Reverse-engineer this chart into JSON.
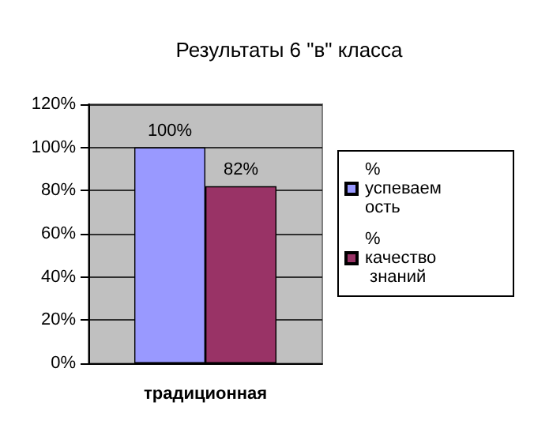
{
  "chart_data": {
    "type": "bar",
    "title": "Результаты 6 \"в\" класса",
    "categories": [
      "традиционная"
    ],
    "series": [
      {
        "name": "% успеваемость",
        "color": "#9999ff",
        "values": [
          100
        ],
        "value_labels": [
          "100%"
        ]
      },
      {
        "name": "% качество знаний",
        "color": "#993366",
        "values": [
          82
        ],
        "value_labels": [
          "82%"
        ]
      }
    ],
    "ylim": [
      0,
      120
    ],
    "yticks": [
      {
        "value": 0,
        "label": "0%"
      },
      {
        "value": 20,
        "label": "20%"
      },
      {
        "value": 40,
        "label": "40%"
      },
      {
        "value": 60,
        "label": "60%"
      },
      {
        "value": 80,
        "label": "80%"
      },
      {
        "value": 100,
        "label": "100%"
      },
      {
        "value": 120,
        "label": "120%"
      }
    ],
    "grid": "y",
    "legend": "right"
  }
}
